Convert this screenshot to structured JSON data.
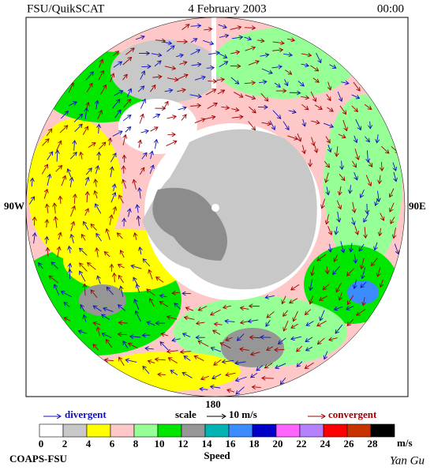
{
  "header": {
    "left": "FSU/QuikSCAT",
    "center": "4 February 2003",
    "right": "00:00"
  },
  "map_labels": {
    "left": "90W",
    "right": "90E",
    "bottom": "180"
  },
  "legend": {
    "divergent": "divergent",
    "scale": "scale",
    "scale_value": "10 m/s",
    "convergent": "convergent"
  },
  "colorbar": {
    "ticks": [
      0,
      2,
      4,
      6,
      8,
      10,
      12,
      14,
      16,
      18,
      20,
      22,
      24,
      26,
      28
    ],
    "colors": [
      "#ffffff",
      "#c8c8c8",
      "#ffff00",
      "#ffc8c8",
      "#96ff96",
      "#00e600",
      "#969696",
      "#00b4b4",
      "#3c8cff",
      "#0000c8",
      "#ff64ff",
      "#b482ff",
      "#ff0000",
      "#c83200",
      "#000000"
    ],
    "unit": "m/s",
    "label": "Speed"
  },
  "footer": {
    "left": "COAPS-FSU",
    "right": "Yan Gu"
  }
}
